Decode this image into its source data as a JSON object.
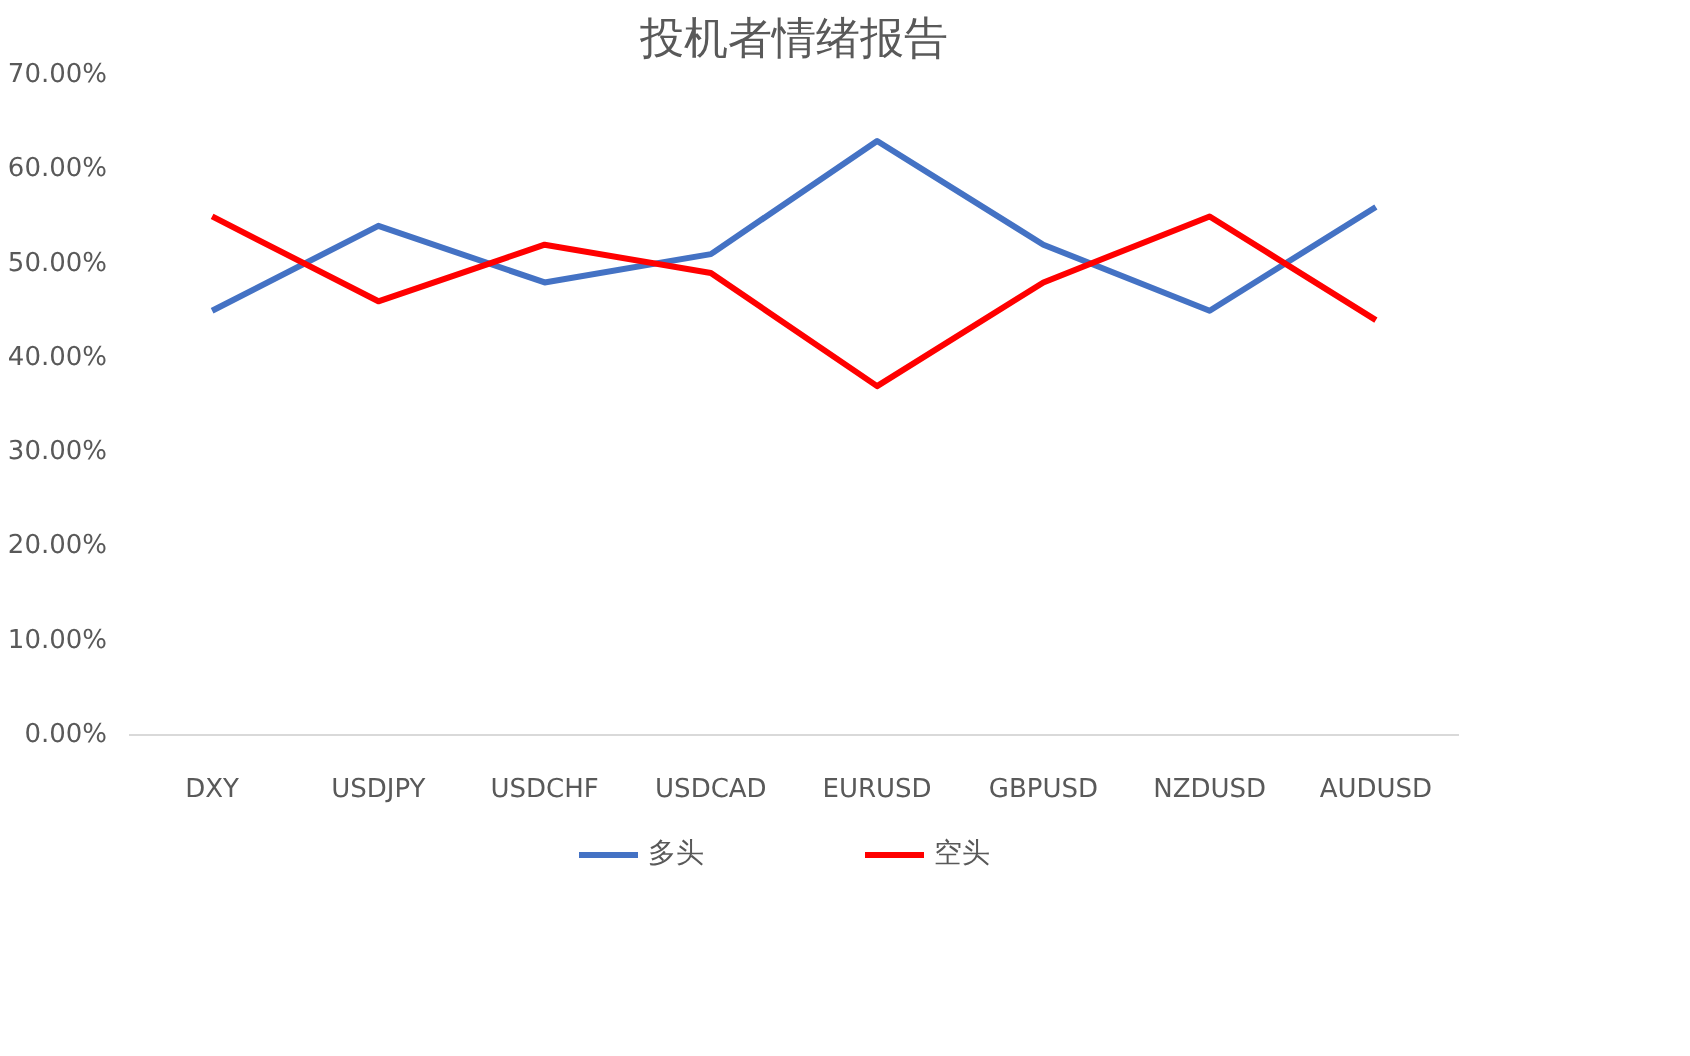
{
  "chart_data": {
    "type": "line",
    "title": "投机者情绪报告",
    "categories": [
      "DXY",
      "USDJPY",
      "USDCHF",
      "USDCAD",
      "EURUSD",
      "GBPUSD",
      "NZDUSD",
      "AUDUSD"
    ],
    "series": [
      {
        "name": "多头",
        "color": "#4472c4",
        "values": [
          45,
          54,
          48,
          51,
          63,
          52,
          45,
          56
        ]
      },
      {
        "name": "空头",
        "color": "#ff0000",
        "values": [
          55,
          46,
          52,
          49,
          37,
          48,
          55,
          44
        ]
      }
    ],
    "ylim": [
      0,
      70
    ],
    "yticks": [
      {
        "value": 0,
        "label": "0.00%"
      },
      {
        "value": 10,
        "label": "10.00%"
      },
      {
        "value": 20,
        "label": "20.00%"
      },
      {
        "value": 30,
        "label": "30.00%"
      },
      {
        "value": 40,
        "label": "40.00%"
      },
      {
        "value": 50,
        "label": "50.00%"
      },
      {
        "value": 60,
        "label": "60.00%"
      },
      {
        "value": 70,
        "label": "70.00%"
      }
    ],
    "grid": false,
    "legend": "bottom",
    "marker": "none",
    "line_style": "solid"
  }
}
